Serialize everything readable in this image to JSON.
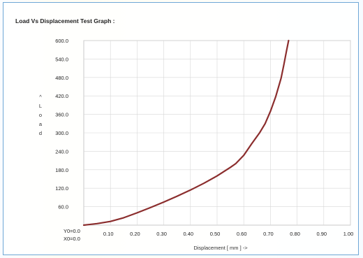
{
  "chart_data": {
    "type": "line",
    "title": "Load Vs Displacement Test  Graph :",
    "xlabel": "Displacement  [ mm ]  ->",
    "ylabel": "^ L o a d",
    "ylabel_chars": [
      "^",
      "L",
      "o",
      "a",
      "d"
    ],
    "origin_labels": [
      "Y0=0.0",
      "X0=0.0"
    ],
    "xlim": [
      0.0,
      1.0
    ],
    "ylim": [
      0.0,
      600.0
    ],
    "x_tick_labels": [
      "0.10",
      "0.20",
      "0.30",
      "0.40",
      "0.50",
      "0.60",
      "0.70",
      "0.80",
      "0.90",
      "1.00"
    ],
    "x_tick_values": [
      0.1,
      0.2,
      0.3,
      0.4,
      0.5,
      0.6,
      0.7,
      0.8,
      0.9,
      1.0
    ],
    "y_tick_labels": [
      "60.0",
      "120.0",
      "180.0",
      "240.0",
      "300.0",
      "360.0",
      "420.0",
      "480.0",
      "540.0",
      "600.0"
    ],
    "y_tick_values": [
      60,
      120,
      180,
      240,
      300,
      360,
      420,
      480,
      540,
      600
    ],
    "grid": true,
    "line_color": "#8b2d2d",
    "series": [
      {
        "x": [
          0.0,
          0.05,
          0.1,
          0.15,
          0.2,
          0.25,
          0.3,
          0.35,
          0.4,
          0.45,
          0.5,
          0.55,
          0.57,
          0.6,
          0.63,
          0.66,
          0.68,
          0.7,
          0.72,
          0.74,
          0.75,
          0.76,
          0.768
        ],
        "y": [
          0.0,
          5.0,
          12.0,
          24.0,
          40.0,
          57.0,
          75.0,
          94.0,
          114.0,
          136.0,
          160.0,
          188.0,
          200.0,
          227.0,
          265.0,
          301.0,
          330.0,
          370.0,
          418.0,
          478.0,
          520.0,
          565.0,
          600.0
        ]
      }
    ]
  }
}
